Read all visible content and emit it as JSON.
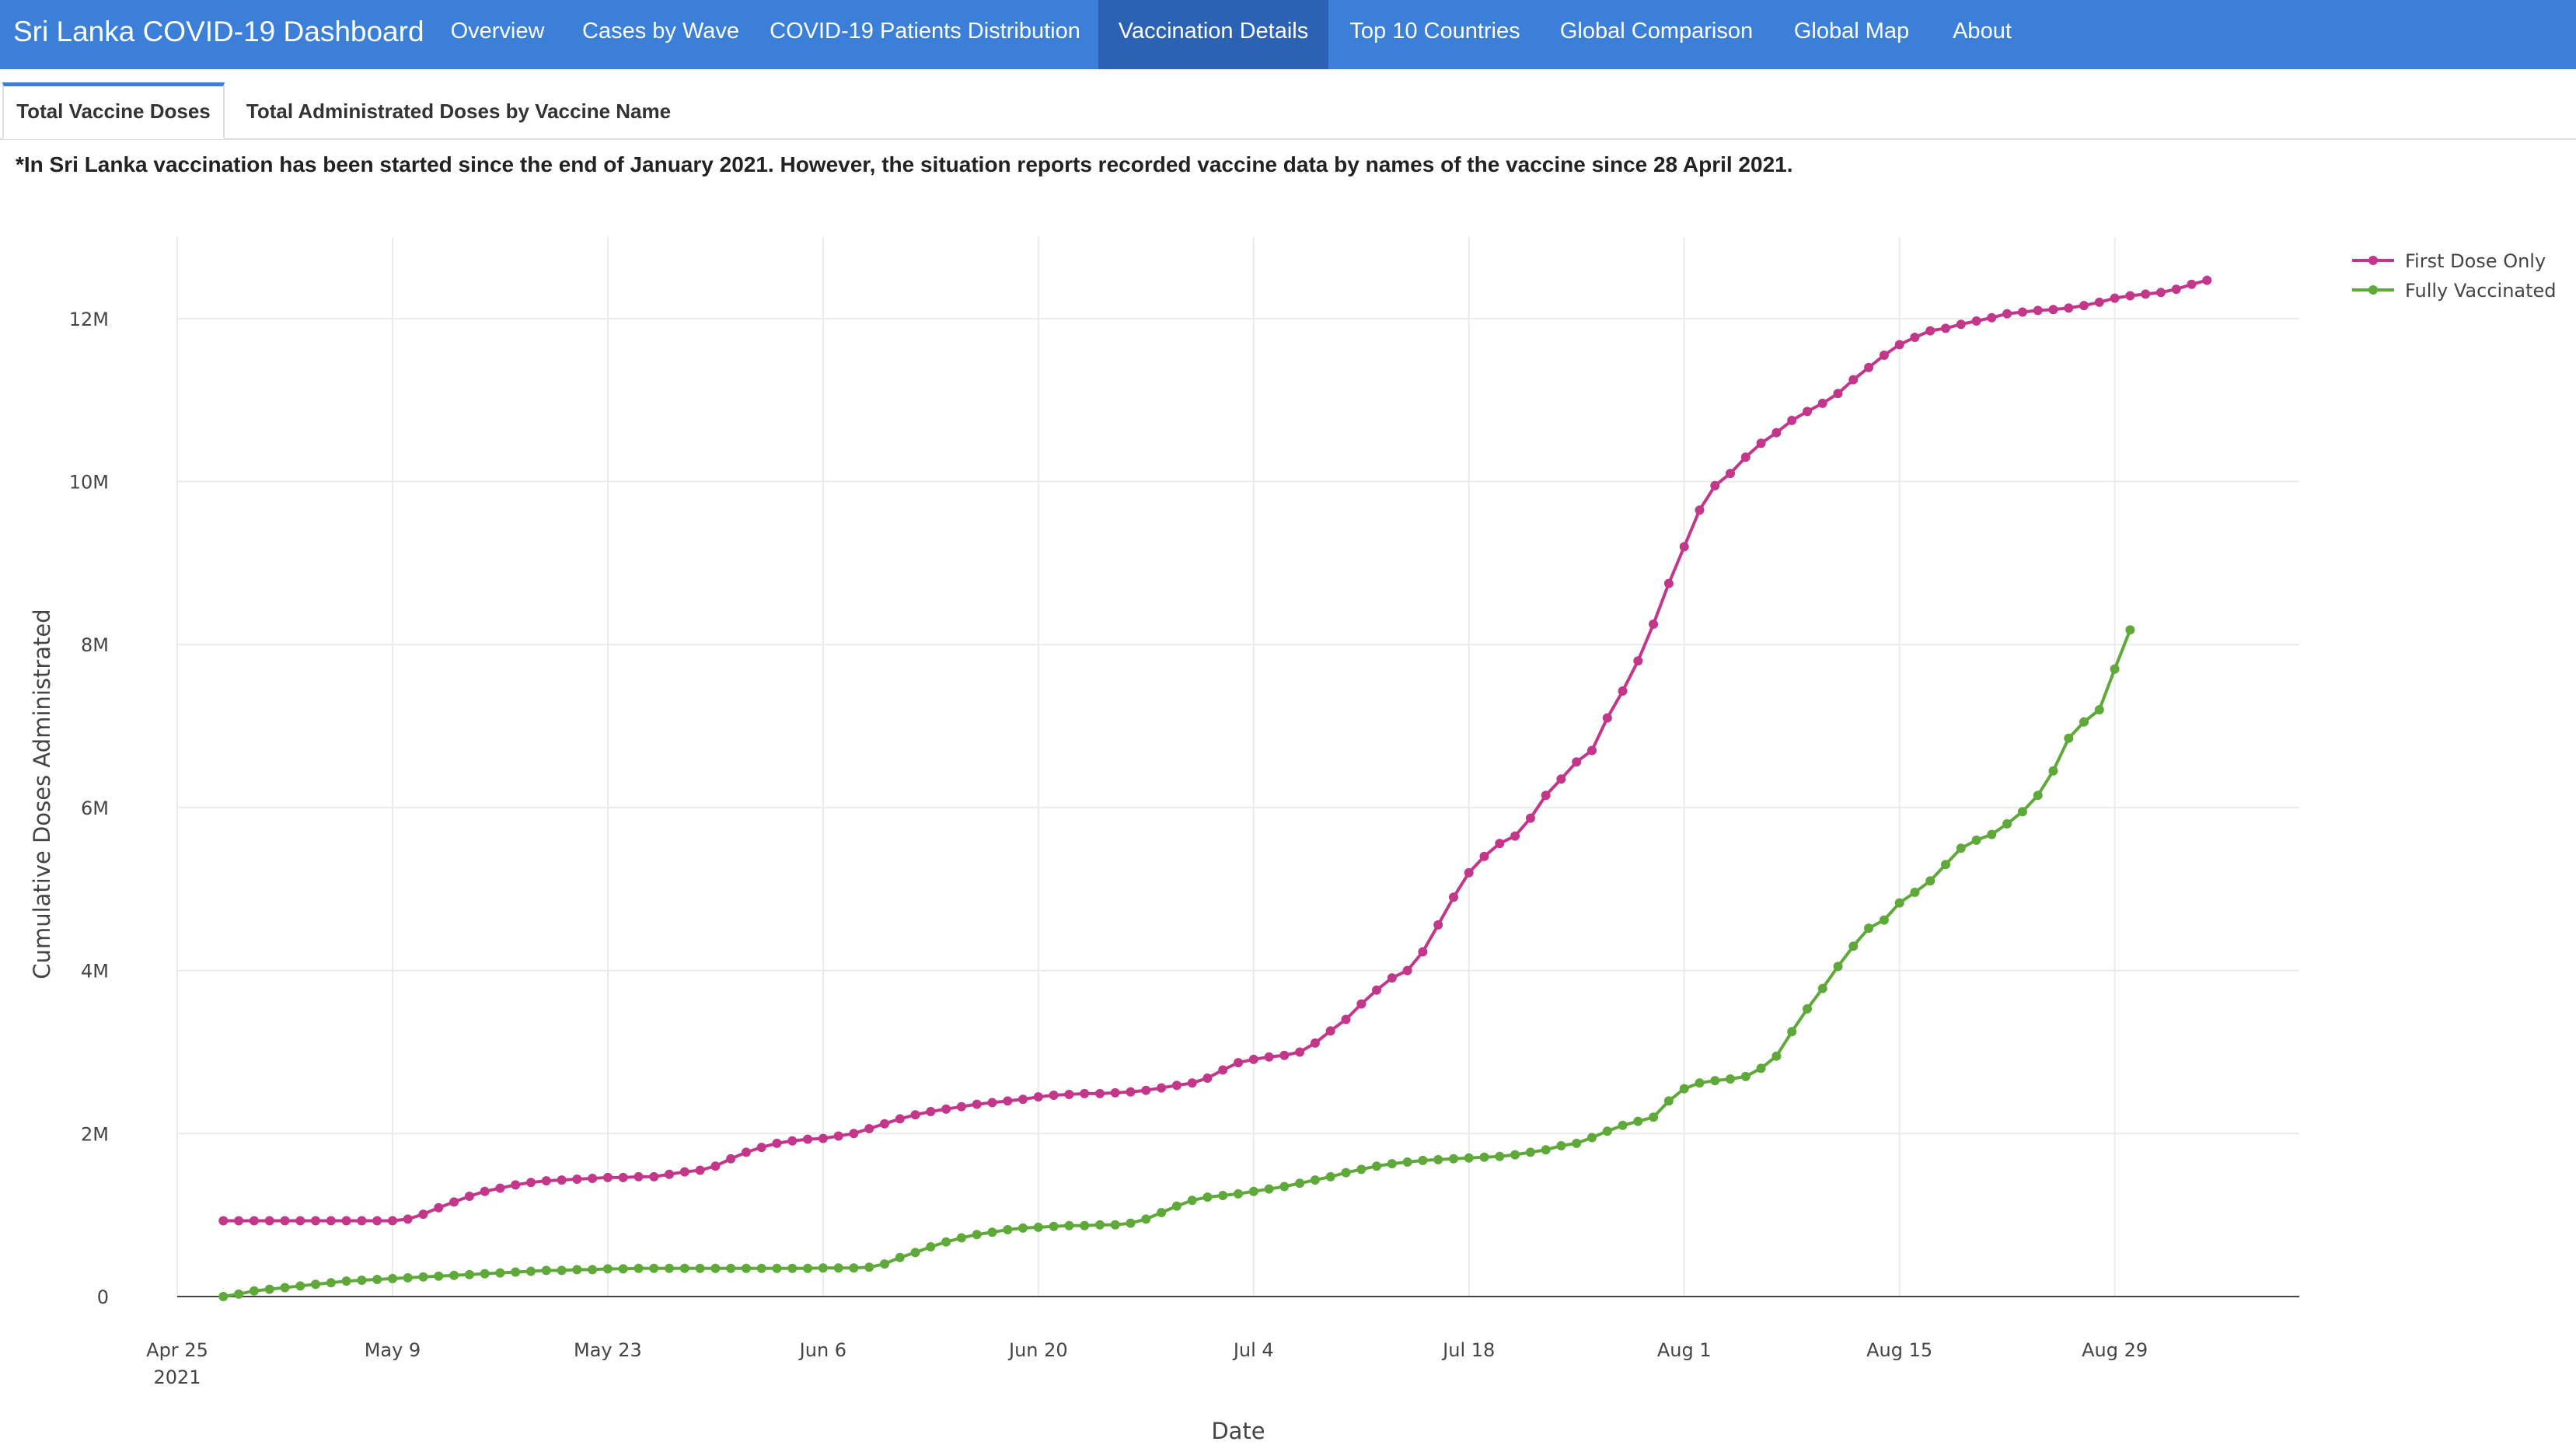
{
  "navbar": {
    "brand": "Sri Lanka COVID-19 Dashboard",
    "items": [
      "Overview",
      "Cases by Wave",
      "COVID-19 Patients Distribution",
      "Vaccination Details",
      "Top 10 Countries",
      "Global Comparison",
      "Global Map",
      "About"
    ],
    "active_item": "Vaccination Details",
    "background": "#3b7fd9",
    "active_background": "#2b62b3"
  },
  "tabs": {
    "items": [
      "Total Vaccine Doses",
      "Total Administrated Doses by Vaccine Name"
    ],
    "active": "Total Vaccine Doses"
  },
  "note": "*In Sri Lanka vaccination has been started since the end of January 2021. However, the situation reports recorded vaccine data by names of the vaccine since 28 April 2021.",
  "chart_data": {
    "type": "line",
    "xlabel": "Date",
    "ylabel": "Cumulative Doses Administrated",
    "x_start": "2021-04-28",
    "x_end": "2021-08-31",
    "xlim": [
      "2021-04-25",
      "2021-09-10"
    ],
    "ylim": [
      0,
      13000000
    ],
    "x_ticks": [
      {
        "date": "2021-04-25",
        "label": "Apr 25",
        "sublabel": "2021"
      },
      {
        "date": "2021-05-09",
        "label": "May 9"
      },
      {
        "date": "2021-05-23",
        "label": "May 23"
      },
      {
        "date": "2021-06-06",
        "label": "Jun 6"
      },
      {
        "date": "2021-06-20",
        "label": "Jun 20"
      },
      {
        "date": "2021-07-04",
        "label": "Jul 4"
      },
      {
        "date": "2021-07-18",
        "label": "Jul 18"
      },
      {
        "date": "2021-08-01",
        "label": "Aug 1"
      },
      {
        "date": "2021-08-15",
        "label": "Aug 15"
      },
      {
        "date": "2021-08-29",
        "label": "Aug 29"
      }
    ],
    "y_ticks": [
      {
        "value": 0,
        "label": "0"
      },
      {
        "value": 2000000,
        "label": "2M"
      },
      {
        "value": 4000000,
        "label": "4M"
      },
      {
        "value": 6000000,
        "label": "6M"
      },
      {
        "value": 8000000,
        "label": "8M"
      },
      {
        "value": 10000000,
        "label": "10M"
      },
      {
        "value": 12000000,
        "label": "12M"
      }
    ],
    "grid": true,
    "legend_position": "top-right",
    "series": [
      {
        "name": "First Dose Only",
        "color": "#c2378a",
        "values": [
          930000,
          930000,
          930000,
          930000,
          930000,
          930000,
          930000,
          930000,
          930000,
          930000,
          930000,
          930000,
          950000,
          1010000,
          1090000,
          1160000,
          1230000,
          1290000,
          1330000,
          1370000,
          1400000,
          1420000,
          1430000,
          1440000,
          1450000,
          1460000,
          1460000,
          1470000,
          1470000,
          1500000,
          1530000,
          1550000,
          1600000,
          1690000,
          1770000,
          1830000,
          1880000,
          1910000,
          1930000,
          1940000,
          1970000,
          2000000,
          2060000,
          2120000,
          2180000,
          2230000,
          2270000,
          2300000,
          2330000,
          2360000,
          2380000,
          2400000,
          2420000,
          2450000,
          2470000,
          2480000,
          2490000,
          2490000,
          2500000,
          2510000,
          2530000,
          2560000,
          2590000,
          2620000,
          2680000,
          2780000,
          2870000,
          2910000,
          2940000,
          2960000,
          3000000,
          3110000,
          3260000,
          3400000,
          3590000,
          3760000,
          3910000,
          4000000,
          4230000,
          4560000,
          4900000,
          5200000,
          5400000,
          5560000,
          5650000,
          5870000,
          6150000,
          6350000,
          6560000,
          6700000,
          7100000,
          7430000,
          7800000,
          8250000,
          8750000,
          9200000,
          9650000,
          9950000,
          10100000,
          10300000,
          10470000,
          10600000,
          10750000,
          10860000,
          10960000,
          11080000,
          11250000,
          11400000,
          11550000,
          11680000,
          11770000,
          11850000,
          11880000,
          11930000,
          11970000,
          12010000,
          12060000,
          12080000,
          12100000,
          12110000,
          12130000,
          12160000,
          12200000,
          12250000,
          12280000,
          12300000,
          12320000,
          12360000,
          12420000,
          12470000
        ]
      },
      {
        "name": "Fully Vaccinated",
        "color": "#5fa83a",
        "values": [
          0,
          30000,
          70000,
          90000,
          110000,
          130000,
          150000,
          170000,
          190000,
          200000,
          210000,
          220000,
          230000,
          240000,
          250000,
          260000,
          270000,
          280000,
          290000,
          300000,
          310000,
          320000,
          320000,
          330000,
          330000,
          340000,
          340000,
          345000,
          345000,
          345000,
          345000,
          345000,
          345000,
          345000,
          345000,
          345000,
          345000,
          345000,
          345000,
          350000,
          350000,
          350000,
          360000,
          400000,
          480000,
          540000,
          610000,
          670000,
          720000,
          760000,
          790000,
          820000,
          840000,
          850000,
          860000,
          870000,
          870000,
          880000,
          880000,
          900000,
          950000,
          1030000,
          1110000,
          1180000,
          1220000,
          1240000,
          1260000,
          1290000,
          1320000,
          1350000,
          1390000,
          1430000,
          1470000,
          1520000,
          1560000,
          1600000,
          1630000,
          1650000,
          1670000,
          1680000,
          1690000,
          1700000,
          1710000,
          1720000,
          1740000,
          1770000,
          1800000,
          1850000,
          1880000,
          1950000,
          2030000,
          2100000,
          2150000,
          2200000,
          2400000,
          2550000,
          2620000,
          2650000,
          2670000,
          2700000,
          2800000,
          2950000,
          3250000,
          3530000,
          3780000,
          4050000,
          4300000,
          4520000,
          4620000,
          4830000,
          4960000,
          5100000,
          5300000,
          5500000,
          5600000,
          5670000,
          5800000,
          5950000,
          6150000,
          6450000,
          6850000,
          7050000,
          7200000,
          7700000,
          8180000
        ]
      }
    ]
  }
}
